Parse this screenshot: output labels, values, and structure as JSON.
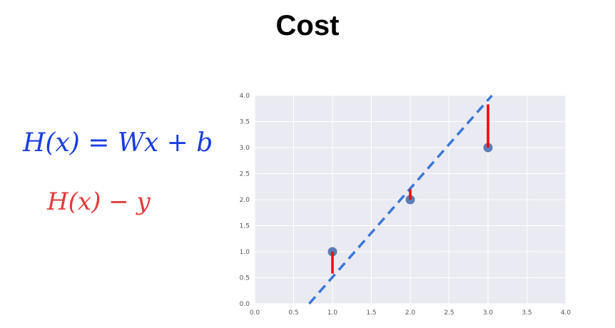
{
  "title": "Cost",
  "formulas": {
    "hypothesis": "H(x) = Wx + b",
    "error": "H(x) − y"
  },
  "colors": {
    "hypothesis_text": "#1a3de0",
    "error_text": "#e33a3a",
    "plot_background": "#eaeaf2",
    "grid": "#ffffff",
    "points": "#4c72b0",
    "line": "#3a78d8",
    "residuals": "#ff0000"
  },
  "chart_data": {
    "type": "scatter",
    "grid": true,
    "xlim": [
      0,
      4.0
    ],
    "ylim": [
      0,
      4.0
    ],
    "x_tick_values": [
      0,
      0.5,
      1.0,
      1.5,
      2.0,
      2.5,
      3.0,
      3.5,
      4.0
    ],
    "y_tick_values": [
      0,
      0.5,
      1.0,
      1.5,
      2.0,
      2.5,
      3.0,
      3.5,
      4.0
    ],
    "x_tick_labels": [
      "0.0",
      "0.5",
      "1.0",
      "1.5",
      "2.0",
      "2.5",
      "3.0",
      "3.5",
      "4.0"
    ],
    "y_tick_labels": [
      "0.0",
      "0.5",
      "1.0",
      "1.5",
      "2.0",
      "2.5",
      "3.0",
      "3.5",
      "4.0"
    ],
    "points": [
      {
        "x": 1.0,
        "y": 1.0
      },
      {
        "x": 2.0,
        "y": 2.0
      },
      {
        "x": 3.0,
        "y": 3.0
      }
    ],
    "hypothesis_line": {
      "style": "dashed",
      "x": [
        0.7,
        3.05
      ],
      "y": [
        0,
        4.0
      ]
    },
    "residuals": [
      {
        "x": 1.0,
        "y_from": 1.0,
        "y_to": 0.58
      },
      {
        "x": 2.0,
        "y_from": 2.0,
        "y_to": 2.2
      },
      {
        "x": 3.0,
        "y_from": 3.0,
        "y_to": 3.83
      }
    ]
  }
}
